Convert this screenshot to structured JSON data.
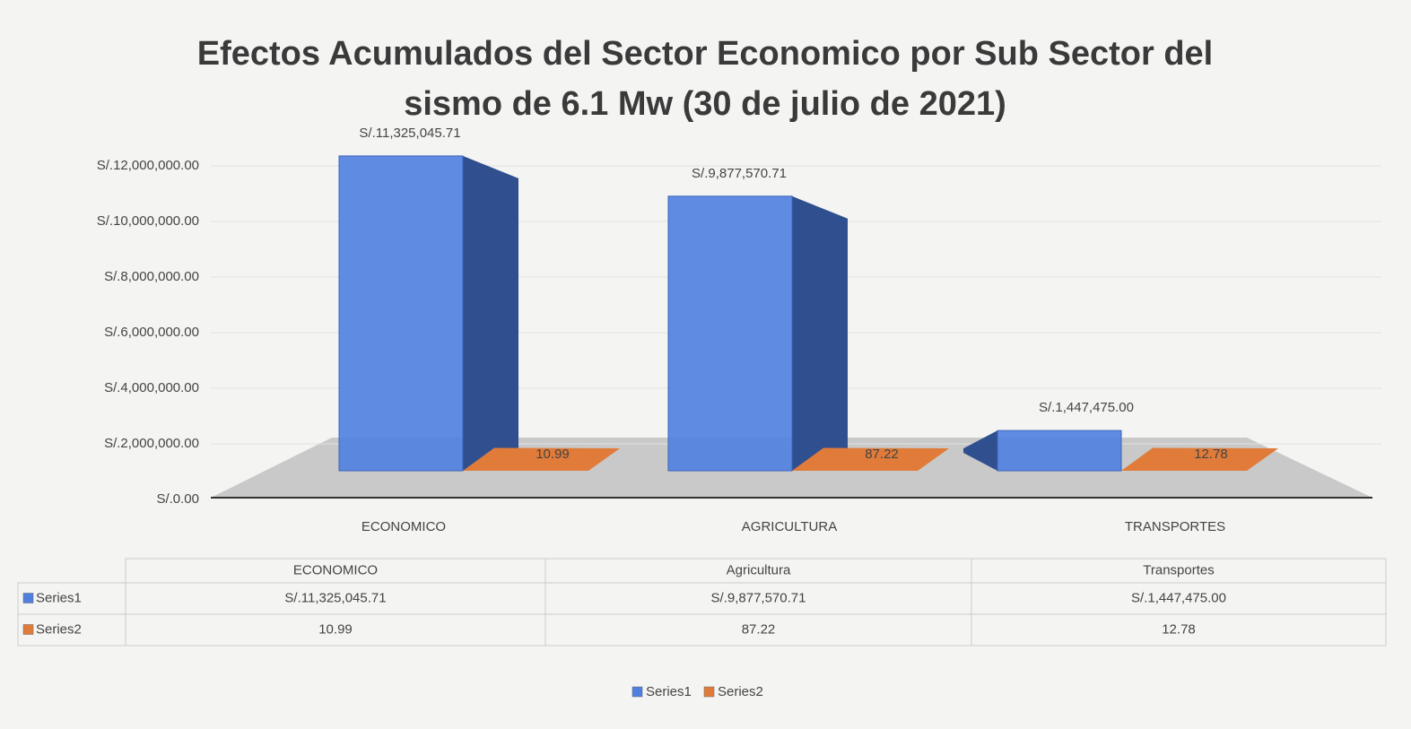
{
  "chart_data": {
    "type": "bar3d",
    "title": "Efectos Acumulados del Sector Economico por Sub Sector del",
    "subtitle": "sismo de 6.1 Mw (30 de julio de 2021)",
    "categories": [
      "ECONOMICO",
      "AGRICULTURA",
      "TRANSPORTES"
    ],
    "table_categories": [
      "ECONOMICO",
      "Agricultura",
      "Transportes"
    ],
    "series": [
      {
        "name": "Series1",
        "color": "#4f7fe0",
        "values": [
          11325045.71,
          9877570.71,
          1447475.0
        ],
        "value_labels": [
          "S/.11,325,045.71",
          "S/.9,877,570.71",
          "S/.1,447,475.00"
        ]
      },
      {
        "name": "Series2",
        "color": "#e07b39",
        "values": [
          10.99,
          87.22,
          12.78
        ],
        "value_labels": [
          "10.99",
          "87.22",
          "12.78"
        ]
      }
    ],
    "ylim": [
      0,
      12000000
    ],
    "yticks": [
      {
        "value": 0,
        "label": "S/.0.00"
      },
      {
        "value": 2000000,
        "label": "S/.2,000,000.00"
      },
      {
        "value": 4000000,
        "label": "S/.4,000,000.00"
      },
      {
        "value": 6000000,
        "label": "S/.6,000,000.00"
      },
      {
        "value": 8000000,
        "label": "S/.8,000,000.00"
      },
      {
        "value": 10000000,
        "label": "S/.10,000,000.00"
      },
      {
        "value": 12000000,
        "label": "S/.12,000,000.00"
      }
    ],
    "grid": true
  }
}
